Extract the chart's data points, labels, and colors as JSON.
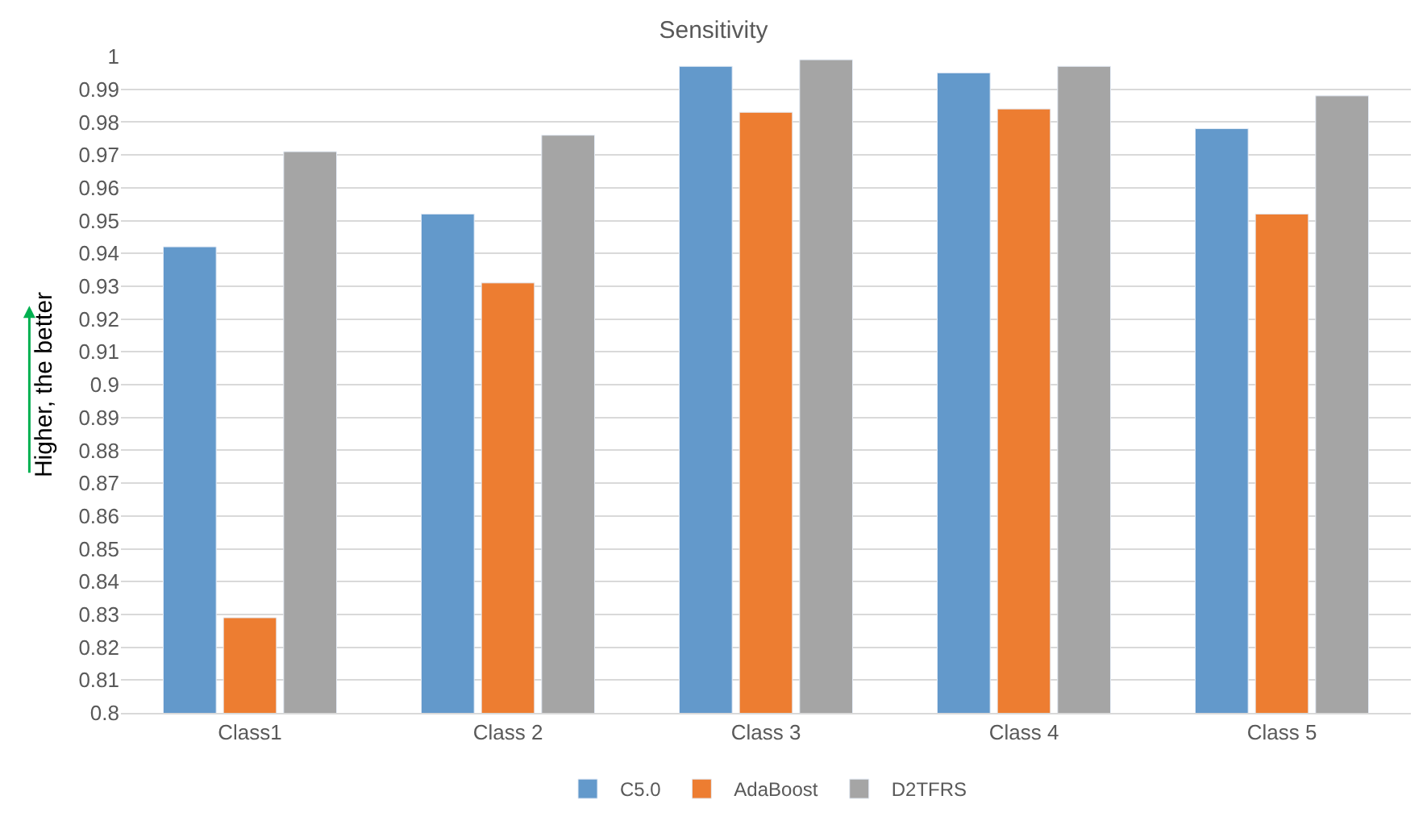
{
  "chart_data": {
    "type": "bar",
    "title": "Sensitivity",
    "ylabel": "Higher, the better",
    "categories": [
      "Class1",
      "Class 2",
      "Class 3",
      "Class 4",
      "Class 5"
    ],
    "series": [
      {
        "name": "C5.0",
        "color": "#6399cb",
        "values": [
          0.942,
          0.952,
          0.997,
          0.995,
          0.978
        ]
      },
      {
        "name": "AdaBoost",
        "color": "#ed7d31",
        "values": [
          0.829,
          0.931,
          0.983,
          0.984,
          0.952
        ]
      },
      {
        "name": "D2TFRS",
        "color": "#a5a5a5",
        "values": [
          0.971,
          0.976,
          0.999,
          0.997,
          0.988
        ]
      }
    ],
    "ylim": [
      0.8,
      1
    ],
    "yticks": [
      0.8,
      0.81,
      0.82,
      0.83,
      0.84,
      0.85,
      0.86,
      0.87,
      0.88,
      0.89,
      0.9,
      0.91,
      0.92,
      0.93,
      0.94,
      0.95,
      0.96,
      0.97,
      0.98,
      0.99,
      1
    ],
    "grid": "y",
    "legend": "bottom"
  }
}
